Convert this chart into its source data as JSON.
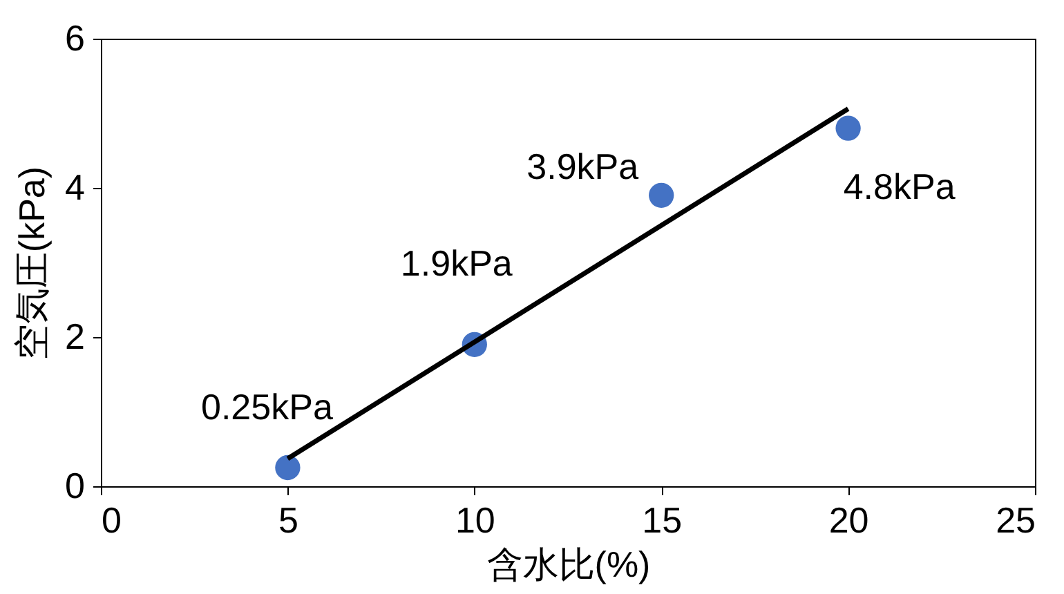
{
  "chart_data": {
    "type": "scatter",
    "xlabel": "含水比(%)",
    "ylabel": "空気圧(kPa)",
    "x": [
      5,
      10,
      15,
      20
    ],
    "series": [
      {
        "color": "#4472c4",
        "marker": "circle",
        "values": [
          0.25,
          1.9,
          3.9,
          4.8
        ]
      },
      {
        "type": "line",
        "color": "#000000",
        "x": [
          5,
          20
        ],
        "values": [
          0.37,
          5.06
        ]
      }
    ],
    "xlim": [
      0,
      25
    ],
    "xticks": [
      0,
      5,
      10,
      15,
      20,
      25
    ],
    "ylim": [
      0,
      6
    ],
    "yticks": [
      0,
      2,
      4,
      6
    ],
    "annotations": [
      {
        "text": "0.25kPa",
        "x": 5,
        "y": 0.25
      },
      {
        "text": "1.9kPa",
        "x": 10,
        "y": 1.9
      },
      {
        "text": "3.9kPa",
        "x": 15,
        "y": 3.9
      },
      {
        "text": "4.8kPa",
        "x": 20,
        "y": 4.8
      }
    ]
  }
}
